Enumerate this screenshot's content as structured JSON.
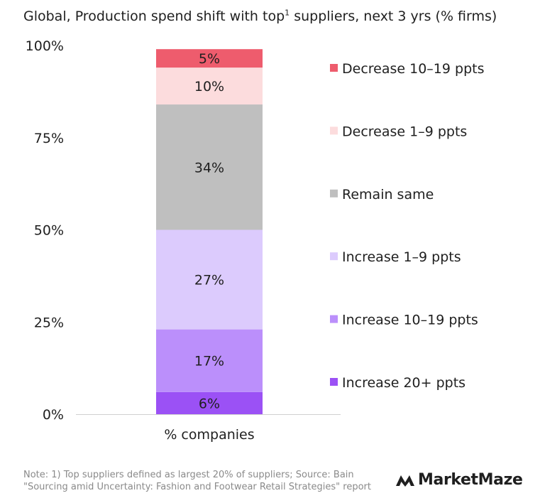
{
  "title": {
    "main": "Global, Production spend shift with top",
    "superscript": "1",
    "rest": " suppliers, next 3 yrs (% firms)"
  },
  "chart_data": {
    "type": "bar",
    "stacked": true,
    "categories": [
      "% companies"
    ],
    "yticks": [
      "0%",
      "25%",
      "50%",
      "75%",
      "100%"
    ],
    "ylim": [
      0,
      100
    ],
    "grid": false,
    "legend_position": "right",
    "series": [
      {
        "name": "Increase 20+ ppts",
        "values": [
          6
        ],
        "label": "6%",
        "color": "#9b51f5"
      },
      {
        "name": "Increase 10–19 ppts",
        "values": [
          17
        ],
        "label": "17%",
        "color": "#bb8ffb"
      },
      {
        "name": "Increase 1–9 ppts",
        "values": [
          27
        ],
        "label": "27%",
        "color": "#dccbfd"
      },
      {
        "name": "Remain same",
        "values": [
          34
        ],
        "label": "34%",
        "color": "#bfbfbf"
      },
      {
        "name": "Decrease 1–9 ppts",
        "values": [
          10
        ],
        "label": "10%",
        "color": "#fcdcdd"
      },
      {
        "name": "Decrease 10–19 ppts",
        "values": [
          5
        ],
        "label": "5%",
        "color": "#ee5c6d"
      }
    ]
  },
  "footer": {
    "note_line1": "Note: 1) Top suppliers defined as largest 20% of suppliers;  Source: Bain",
    "note_line2": "\"Sourcing amid Uncertainty: Fashion and Footwear Retail Strategies\" report",
    "brand": "MarketMaze"
  }
}
